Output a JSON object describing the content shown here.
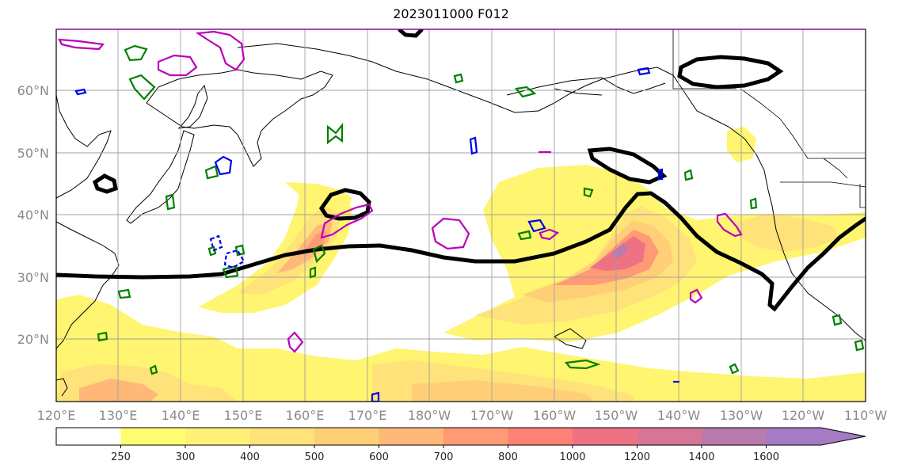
{
  "title": "2023011000 F012",
  "map": {
    "lon_range": [
      "120°E",
      "110°W"
    ],
    "lat_range": [
      "10°N",
      "70°N"
    ],
    "lat_labels": [
      "60°N",
      "50°N",
      "40°N",
      "30°N",
      "20°N"
    ],
    "lon_labels": [
      "120°E",
      "130°E",
      "140°E",
      "150°E",
      "160°E",
      "170°E",
      "180°W",
      "170°W",
      "160°W",
      "150°W",
      "140°W",
      "130°W",
      "120°W",
      "110°W"
    ],
    "gridlines": true,
    "contour_colors": {
      "thick": "#000000",
      "green": "#008000",
      "blue": "#0000ee",
      "magenta": "#bb00bb"
    }
  },
  "colorbar": {
    "ticks": [
      "250",
      "300",
      "400",
      "500",
      "600",
      "700",
      "800",
      "1000",
      "1200",
      "1400",
      "1600"
    ],
    "colors": [
      "#ffffff",
      "#fffd70",
      "#fff07a",
      "#ffe27a",
      "#ffcf78",
      "#ffb878",
      "#ff9a74",
      "#ff8074",
      "#ef7284",
      "#d77694",
      "#b97aae",
      "#a77ac4"
    ],
    "extend": "max"
  }
}
